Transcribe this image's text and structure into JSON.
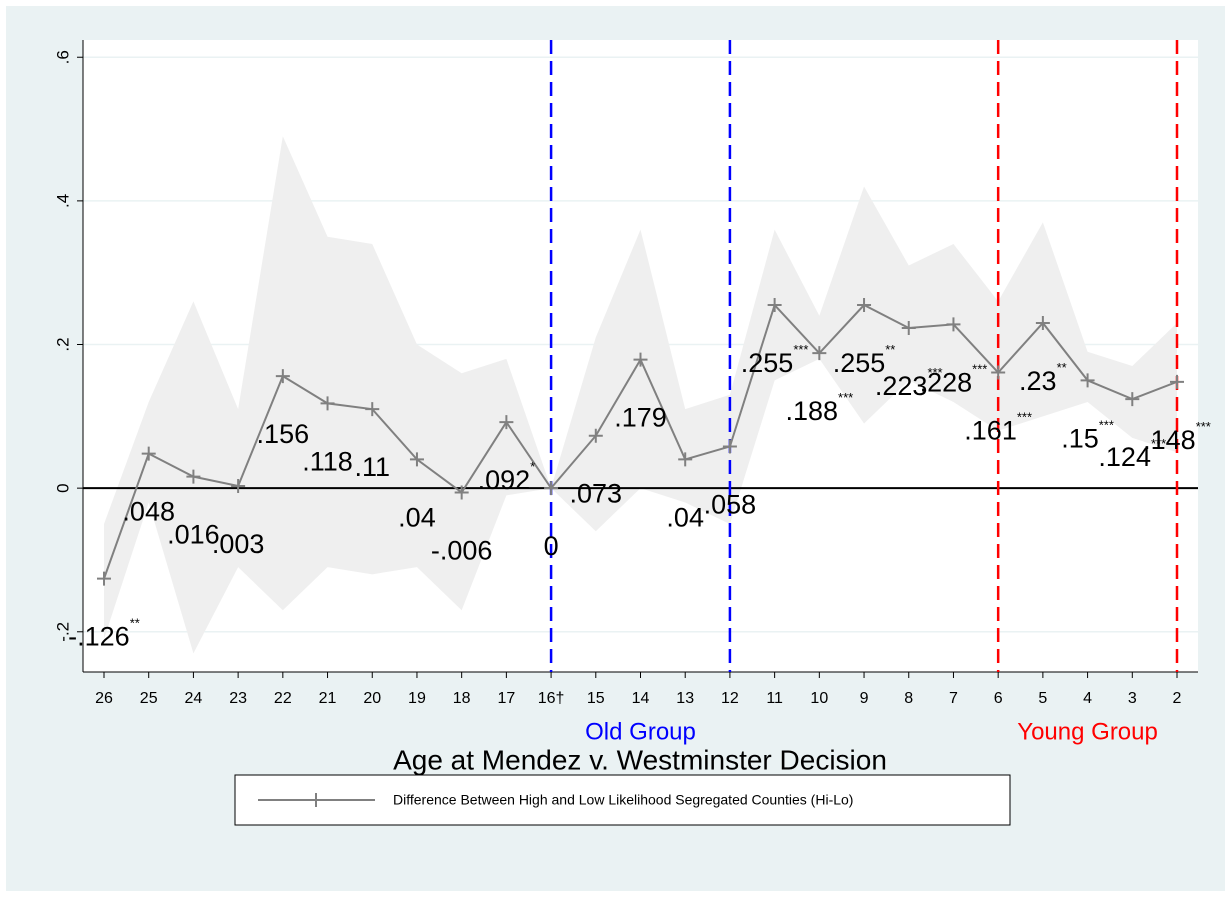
{
  "chart_data": {
    "type": "line",
    "x_label": "Age at Mendez v. Westminster Decision",
    "categories": [
      "26",
      "25",
      "24",
      "23",
      "22",
      "21",
      "20",
      "19",
      "18",
      "17",
      "16†",
      "15",
      "14",
      "13",
      "12",
      "11",
      "10",
      "9",
      "8",
      "7",
      "6",
      "5",
      "4",
      "3",
      "2"
    ],
    "series": [
      {
        "name": "Difference Between High and Low Likelihood Segregated Counties (Hi-Lo)",
        "color": "#808080",
        "values": [
          -0.126,
          0.048,
          0.016,
          0.003,
          0.156,
          0.118,
          0.11,
          0.04,
          -0.006,
          0.092,
          0,
          0.073,
          0.179,
          0.04,
          0.058,
          0.255,
          0.188,
          0.255,
          0.223,
          0.228,
          0.161,
          0.23,
          0.15,
          0.124,
          0.148
        ],
        "value_labels": [
          "-.126",
          ".048",
          ".016",
          ".003",
          ".156",
          ".118",
          ".11",
          ".04",
          "-.006",
          ".092",
          "0",
          ".073",
          ".179",
          ".04",
          ".058",
          ".255",
          ".188",
          ".255",
          ".223",
          ".228",
          ".161",
          ".23",
          ".15",
          ".124",
          ".148"
        ],
        "significance": [
          "**",
          null,
          null,
          null,
          null,
          null,
          null,
          null,
          null,
          "*",
          null,
          null,
          null,
          null,
          null,
          "***",
          "***",
          "**",
          "***",
          "***",
          "***",
          "**",
          "***",
          "***",
          "***"
        ],
        "upper": [
          -0.05,
          0.12,
          0.26,
          0.11,
          0.49,
          0.35,
          0.34,
          0.2,
          0.16,
          0.18,
          0,
          0.21,
          0.36,
          0.11,
          0.13,
          0.36,
          0.24,
          0.42,
          0.31,
          0.34,
          0.26,
          0.37,
          0.19,
          0.17,
          0.23
        ],
        "lower": [
          -0.21,
          -0.02,
          -0.23,
          -0.11,
          -0.17,
          -0.11,
          -0.12,
          -0.11,
          -0.17,
          -0.01,
          0,
          -0.06,
          0,
          -0.02,
          -0.05,
          0.15,
          0.18,
          0.09,
          0.15,
          0.12,
          0.08,
          0.1,
          0.12,
          0.07,
          0.05
        ]
      }
    ],
    "band_color": "#efefef",
    "ylim": [
      -0.256,
      0.624
    ],
    "yticks": [
      {
        "value": -0.2,
        "label": "-.2"
      },
      {
        "value": 0,
        "label": "0"
      },
      {
        "value": 0.2,
        "label": ".2"
      },
      {
        "value": 0.4,
        "label": ".4"
      },
      {
        "value": 0.6,
        "label": ".6"
      }
    ],
    "grid": true,
    "reference_line": {
      "value": 0,
      "color": "#000000"
    },
    "groups": [
      {
        "label": "Old Group",
        "from": "16†",
        "to": "12",
        "color": "#0000ff"
      },
      {
        "label": "Young Group",
        "from": "6",
        "to": "2",
        "color": "#ff0000"
      }
    ],
    "legend": "bottom"
  }
}
